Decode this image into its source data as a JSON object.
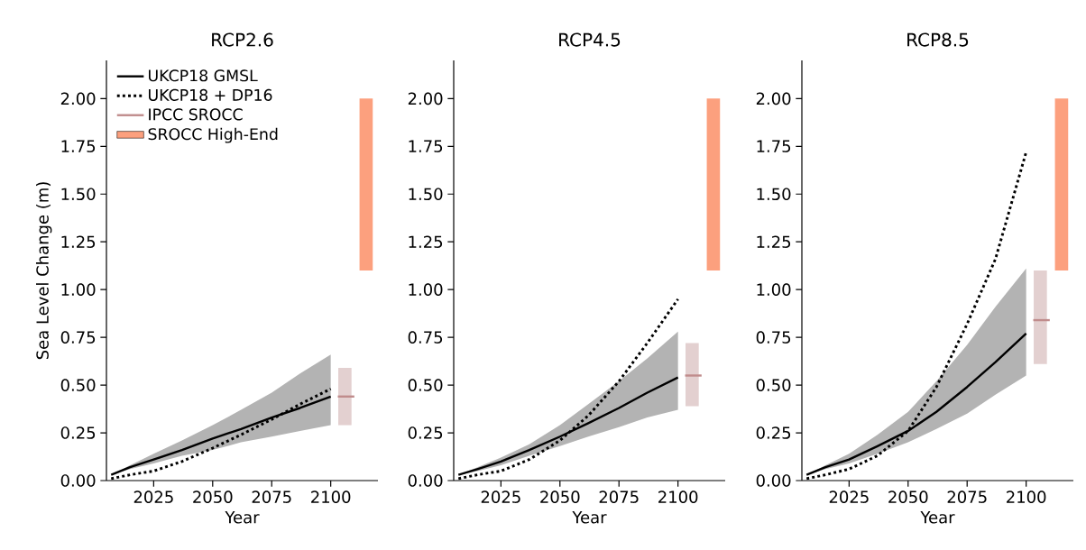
{
  "chart_data": [
    {
      "type": "line",
      "title": "RCP2.6",
      "xlabel": "Year",
      "ylabel": "Sea Level Change (m)",
      "xlim": [
        2005,
        2120
      ],
      "ylim": [
        0,
        2.2
      ],
      "xticks": [
        2025,
        2050,
        2075,
        2100
      ],
      "yticks": [
        {
          "value": 0,
          "label": "0.00"
        },
        {
          "value": 0.25,
          "label": "0.25"
        },
        {
          "value": 0.5,
          "label": "0.50"
        },
        {
          "value": 0.75,
          "label": "0.75"
        },
        {
          "value": 1,
          "label": "1.00"
        },
        {
          "value": 1.25,
          "label": "1.25"
        },
        {
          "value": 1.5,
          "label": "1.50"
        },
        {
          "value": 1.75,
          "label": "1.75"
        },
        {
          "value": 2,
          "label": "2.00"
        }
      ],
      "legend": "top left",
      "series": [
        {
          "name": "UKCP18 GMSL",
          "line_style": "solid",
          "color": "#000000",
          "x": [
            2007,
            2015,
            2025,
            2037,
            2050,
            2062,
            2075,
            2087,
            2100
          ],
          "values": [
            0.03,
            0.07,
            0.11,
            0.16,
            0.22,
            0.27,
            0.33,
            0.38,
            0.44
          ],
          "lower": [
            0.03,
            0.06,
            0.09,
            0.13,
            0.16,
            0.2,
            0.23,
            0.26,
            0.29
          ],
          "upper": [
            0.03,
            0.08,
            0.14,
            0.21,
            0.29,
            0.37,
            0.46,
            0.56,
            0.66
          ]
        },
        {
          "name": "UKCP18 + DP16",
          "line_style": "dotted",
          "color": "#000000",
          "x": [
            2007,
            2015,
            2025,
            2037,
            2050,
            2062,
            2075,
            2087,
            2100
          ],
          "values": [
            0.01,
            0.03,
            0.05,
            0.1,
            0.17,
            0.24,
            0.32,
            0.4,
            0.48
          ]
        },
        {
          "type": "bar",
          "color": "#e3d0d0",
          "x": [
            2106
          ],
          "base": [
            0.29
          ],
          "values": [
            0.3
          ]
        },
        {
          "name": "IPCC SROCC",
          "line_style": "solid",
          "color": "#c08c8c",
          "x": [
            2103,
            2110
          ],
          "values": [
            0.44,
            0.44
          ]
        },
        {
          "name": "SROCC High-End",
          "type": "bar",
          "color": "#fca07e",
          "x": [
            2115
          ],
          "base": [
            1.1
          ],
          "values": [
            0.9
          ]
        }
      ]
    },
    {
      "type": "line",
      "title": "RCP4.5",
      "xlabel": "Year",
      "xlim": [
        2005,
        2120
      ],
      "ylim": [
        0,
        2.2
      ],
      "xticks": [
        2025,
        2050,
        2075,
        2100
      ],
      "yticks": [
        {
          "value": 0,
          "label": "0.00"
        },
        {
          "value": 0.25,
          "label": "0.25"
        },
        {
          "value": 0.5,
          "label": "0.50"
        },
        {
          "value": 0.75,
          "label": "0.75"
        },
        {
          "value": 1,
          "label": "1.00"
        },
        {
          "value": 1.25,
          "label": "1.25"
        },
        {
          "value": 1.5,
          "label": "1.50"
        },
        {
          "value": 1.75,
          "label": "1.75"
        },
        {
          "value": 2,
          "label": "2.00"
        }
      ],
      "series": [
        {
          "line_style": "solid",
          "color": "#000000",
          "x": [
            2007,
            2015,
            2025,
            2037,
            2050,
            2062,
            2075,
            2087,
            2100
          ],
          "values": [
            0.03,
            0.06,
            0.1,
            0.16,
            0.23,
            0.3,
            0.38,
            0.46,
            0.54
          ],
          "lower": [
            0.03,
            0.05,
            0.08,
            0.13,
            0.18,
            0.23,
            0.28,
            0.33,
            0.37
          ],
          "upper": [
            0.03,
            0.07,
            0.12,
            0.19,
            0.29,
            0.4,
            0.52,
            0.64,
            0.78
          ]
        },
        {
          "line_style": "dotted",
          "color": "#000000",
          "x": [
            2007,
            2015,
            2025,
            2037,
            2050,
            2062,
            2075,
            2087,
            2100
          ],
          "values": [
            0.01,
            0.03,
            0.05,
            0.11,
            0.21,
            0.34,
            0.52,
            0.72,
            0.95
          ]
        },
        {
          "type": "bar",
          "color": "#e3d0d0",
          "x": [
            2106
          ],
          "base": [
            0.39
          ],
          "values": [
            0.33
          ]
        },
        {
          "line_style": "solid",
          "color": "#c08c8c",
          "x": [
            2103,
            2110
          ],
          "values": [
            0.55,
            0.55
          ]
        },
        {
          "type": "bar",
          "color": "#fca07e",
          "x": [
            2115
          ],
          "base": [
            1.1
          ],
          "values": [
            0.9
          ]
        }
      ]
    },
    {
      "type": "line",
      "title": "RCP8.5",
      "xlabel": "Year",
      "xlim": [
        2005,
        2120
      ],
      "ylim": [
        0,
        2.2
      ],
      "xticks": [
        2025,
        2050,
        2075,
        2100
      ],
      "yticks": [
        {
          "value": 0,
          "label": "0.00"
        },
        {
          "value": 0.25,
          "label": "0.25"
        },
        {
          "value": 0.5,
          "label": "0.50"
        },
        {
          "value": 0.75,
          "label": "0.75"
        },
        {
          "value": 1,
          "label": "1.00"
        },
        {
          "value": 1.25,
          "label": "1.25"
        },
        {
          "value": 1.5,
          "label": "1.50"
        },
        {
          "value": 1.75,
          "label": "1.75"
        },
        {
          "value": 2,
          "label": "2.00"
        }
      ],
      "series": [
        {
          "line_style": "solid",
          "color": "#000000",
          "x": [
            2007,
            2015,
            2025,
            2037,
            2050,
            2062,
            2075,
            2087,
            2100
          ],
          "values": [
            0.03,
            0.07,
            0.11,
            0.18,
            0.26,
            0.36,
            0.49,
            0.62,
            0.77
          ],
          "lower": [
            0.03,
            0.06,
            0.09,
            0.14,
            0.2,
            0.27,
            0.35,
            0.45,
            0.55
          ],
          "upper": [
            0.03,
            0.08,
            0.14,
            0.24,
            0.36,
            0.52,
            0.71,
            0.91,
            1.11
          ]
        },
        {
          "line_style": "dotted",
          "color": "#000000",
          "x": [
            2007,
            2015,
            2025,
            2037,
            2050,
            2062,
            2075,
            2087,
            2100
          ],
          "values": [
            0.01,
            0.03,
            0.06,
            0.13,
            0.26,
            0.49,
            0.82,
            1.16,
            1.72
          ]
        },
        {
          "type": "bar",
          "color": "#e3d0d0",
          "x": [
            2106
          ],
          "base": [
            0.61
          ],
          "values": [
            0.49
          ]
        },
        {
          "line_style": "solid",
          "color": "#c08c8c",
          "x": [
            2103,
            2110
          ],
          "values": [
            0.84,
            0.84
          ]
        },
        {
          "type": "bar",
          "color": "#fca07e",
          "x": [
            2115
          ],
          "base": [
            1.1
          ],
          "values": [
            0.9
          ]
        }
      ]
    }
  ]
}
